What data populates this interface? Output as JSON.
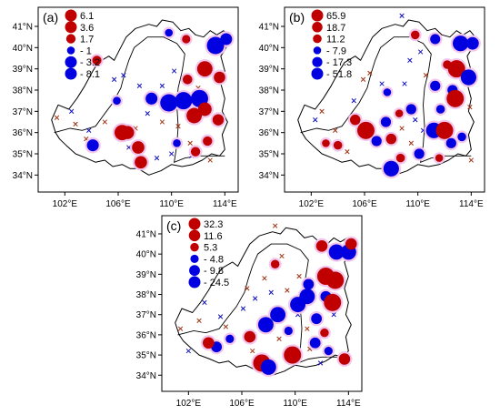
{
  "colors": {
    "positive": "#c00000",
    "negative": "#0000e0",
    "halo": "#f3c6ee",
    "cross_positive": "#a03010",
    "cross_negative": "#1010c0"
  },
  "icons": {
    "insignificant_positive": "x-cross-icon",
    "insignificant_negative": "x-cross-icon"
  },
  "axes": {
    "lon_labels": [
      "102°E",
      "106°E",
      "110°E",
      "114°E"
    ],
    "lat_labels": [
      "41°N",
      "40°N",
      "39°N",
      "38°N",
      "37°N",
      "36°N",
      "35°N",
      "34°N"
    ]
  },
  "panels": [
    {
      "label": "(a)",
      "legend": [
        "6.1",
        "3.6",
        "1.7",
        "- 1",
        "- 3.2",
        "- 8.1"
      ],
      "stations": [
        {
          "lon": 104.4,
          "lat": 39.4,
          "v": 1.6
        },
        {
          "lon": 109.8,
          "lat": 40.7,
          "v": -1
        },
        {
          "lon": 111.1,
          "lat": 40.4,
          "v": 1.2
        },
        {
          "lon": 113.3,
          "lat": 40.1,
          "v": -8.1
        },
        {
          "lon": 114.1,
          "lat": 40.4,
          "v": -3.2
        },
        {
          "lon": 112.5,
          "lat": 39.0,
          "v": 6.1
        },
        {
          "lon": 111.2,
          "lat": 38.5,
          "v": 1.8
        },
        {
          "lon": 113.6,
          "lat": 38.6,
          "v": 2.9
        },
        {
          "lon": 108.5,
          "lat": 37.6,
          "v": -3.2
        },
        {
          "lon": 109.8,
          "lat": 37.4,
          "v": -8.1
        },
        {
          "lon": 110.9,
          "lat": 37.5,
          "v": -8.1
        },
        {
          "lon": 112.1,
          "lat": 37.6,
          "v": -8.1
        },
        {
          "lon": 112.5,
          "lat": 37.1,
          "v": 4.5
        },
        {
          "lon": 111.7,
          "lat": 36.8,
          "v": 6.1
        },
        {
          "lon": 113.5,
          "lat": 36.6,
          "v": 2.8
        },
        {
          "lon": 106.3,
          "lat": 36.0,
          "v": 6.1
        },
        {
          "lon": 106.7,
          "lat": 36.0,
          "v": 4.2
        },
        {
          "lon": 104.1,
          "lat": 35.4,
          "v": -3.2
        },
        {
          "lon": 107.5,
          "lat": 35.3,
          "v": 3.6
        },
        {
          "lon": 107.7,
          "lat": 34.6,
          "v": 3.6
        },
        {
          "lon": 111.8,
          "lat": 35.1,
          "v": 1.7
        },
        {
          "lon": 112.7,
          "lat": 35.6,
          "v": 1.7
        },
        {
          "lon": 110.4,
          "lat": 35.5,
          "v": -1
        },
        {
          "lon": 105.9,
          "lat": 37.5,
          "v": -1
        }
      ],
      "crosses_positive": [
        [
          101.4,
          36.7
        ],
        [
          102.8,
          36.4
        ],
        [
          103.6,
          35.7
        ],
        [
          105.0,
          36.5
        ],
        [
          107.3,
          36.2
        ],
        [
          109.3,
          36.5
        ],
        [
          112.9,
          34.7
        ],
        [
          112.0,
          38.1
        ],
        [
          110.5,
          36.3
        ],
        [
          111.4,
          35.5
        ]
      ],
      "crosses_negative": [
        [
          102.5,
          37.0
        ],
        [
          103.8,
          36.1
        ],
        [
          105.7,
          38.5
        ],
        [
          106.4,
          38.7
        ],
        [
          107.6,
          38.2
        ],
        [
          109.3,
          38.2
        ],
        [
          110.2,
          38.9
        ],
        [
          108.2,
          36.9
        ],
        [
          106.8,
          35.3
        ],
        [
          110.0,
          35.0
        ],
        [
          111.5,
          34.9
        ],
        [
          108.9,
          34.8
        ]
      ]
    },
    {
      "label": "(b)",
      "legend": [
        "65.9",
        "18.7",
        "11.2",
        "- 7.9",
        "- 17.3",
        "- 51.8"
      ],
      "stations": [
        {
          "lon": 109.8,
          "lat": 40.6,
          "v": 11
        },
        {
          "lon": 111.3,
          "lat": 40.4,
          "v": -17
        },
        {
          "lon": 113.2,
          "lat": 40.2,
          "v": -51.8
        },
        {
          "lon": 114.1,
          "lat": 40.2,
          "v": -30
        },
        {
          "lon": 112.2,
          "lat": 39.2,
          "v": 11
        },
        {
          "lon": 112.9,
          "lat": 39.0,
          "v": 65.9
        },
        {
          "lon": 113.8,
          "lat": 38.6,
          "v": -51.8
        },
        {
          "lon": 111.3,
          "lat": 38.2,
          "v": -17.3
        },
        {
          "lon": 112.6,
          "lat": 38.0,
          "v": -17.3
        },
        {
          "lon": 107.7,
          "lat": 37.9,
          "v": -7.9
        },
        {
          "lon": 109.5,
          "lat": 37.1,
          "v": -17.3
        },
        {
          "lon": 112.8,
          "lat": 37.6,
          "v": 65.9
        },
        {
          "lon": 111.7,
          "lat": 37.1,
          "v": -11
        },
        {
          "lon": 105.3,
          "lat": 36.6,
          "v": 18.7
        },
        {
          "lon": 106.1,
          "lat": 36.1,
          "v": 65.9
        },
        {
          "lon": 106.9,
          "lat": 35.6,
          "v": -17.3
        },
        {
          "lon": 107.6,
          "lat": 36.5,
          "v": -17.3
        },
        {
          "lon": 108.0,
          "lat": 35.7,
          "v": 18.7
        },
        {
          "lon": 110.1,
          "lat": 35.0,
          "v": -17.3
        },
        {
          "lon": 111.2,
          "lat": 36.1,
          "v": -51.8
        },
        {
          "lon": 112.0,
          "lat": 36.1,
          "v": 65.9
        },
        {
          "lon": 112.5,
          "lat": 35.5,
          "v": -17.3
        },
        {
          "lon": 108.0,
          "lat": 34.3,
          "v": -51.8
        },
        {
          "lon": 108.7,
          "lat": 34.8,
          "v": 11
        },
        {
          "lon": 104.0,
          "lat": 35.4,
          "v": 11
        },
        {
          "lon": 103.1,
          "lat": 35.5,
          "v": 7.9
        },
        {
          "lon": 111.6,
          "lat": 34.8,
          "v": 7.9
        },
        {
          "lon": 113.3,
          "lat": 35.8,
          "v": -11
        },
        {
          "lon": 108.6,
          "lat": 36.9,
          "v": 7.9
        }
      ],
      "crosses_positive": [
        [
          102.8,
          37.0
        ],
        [
          103.8,
          36.1
        ],
        [
          105.9,
          38.5
        ],
        [
          106.4,
          38.8
        ],
        [
          108.8,
          36.2
        ],
        [
          110.6,
          38.7
        ],
        [
          113.9,
          37.2
        ],
        [
          114.0,
          34.7
        ],
        [
          104.7,
          35.1
        ],
        [
          109.5,
          35.5
        ]
      ],
      "crosses_negative": [
        [
          108.8,
          41.5
        ],
        [
          102.3,
          36.6
        ],
        [
          105.2,
          37.5
        ],
        [
          107.3,
          38.3
        ],
        [
          109.0,
          38.3
        ],
        [
          109.4,
          39.4
        ],
        [
          110.2,
          39.8
        ],
        [
          109.8,
          36.6
        ],
        [
          110.4,
          36.1
        ]
      ]
    },
    {
      "label": "(c)",
      "legend": [
        "32.3",
        "11.6",
        "5.3",
        "- 4.8",
        "- 9.8",
        "- 24.5"
      ],
      "stations": [
        {
          "lon": 112.0,
          "lat": 40.4,
          "v": 11.6
        },
        {
          "lon": 113.1,
          "lat": 40.1,
          "v": -24.5
        },
        {
          "lon": 114.0,
          "lat": 40.1,
          "v": -24.5
        },
        {
          "lon": 114.2,
          "lat": 40.5,
          "v": 11.6
        },
        {
          "lon": 112.3,
          "lat": 38.9,
          "v": 32.3
        },
        {
          "lon": 113.0,
          "lat": 38.7,
          "v": 32.3
        },
        {
          "lon": 111.0,
          "lat": 38.5,
          "v": -9.8
        },
        {
          "lon": 110.9,
          "lat": 37.9,
          "v": -24.5
        },
        {
          "lon": 112.3,
          "lat": 37.9,
          "v": -9.8
        },
        {
          "lon": 112.8,
          "lat": 37.6,
          "v": 32.3
        },
        {
          "lon": 110.2,
          "lat": 37.5,
          "v": -24.5
        },
        {
          "lon": 108.7,
          "lat": 37.0,
          "v": -24.5
        },
        {
          "lon": 107.8,
          "lat": 36.5,
          "v": -24.5
        },
        {
          "lon": 106.6,
          "lat": 35.9,
          "v": 11.6
        },
        {
          "lon": 104.1,
          "lat": 35.4,
          "v": -9.8
        },
        {
          "lon": 103.5,
          "lat": 35.6,
          "v": 11.6
        },
        {
          "lon": 105.1,
          "lat": 35.8,
          "v": -4.8
        },
        {
          "lon": 107.5,
          "lat": 34.6,
          "v": 32.3
        },
        {
          "lon": 108.0,
          "lat": 34.4,
          "v": -24.5
        },
        {
          "lon": 109.8,
          "lat": 35.0,
          "v": 32.3
        },
        {
          "lon": 111.5,
          "lat": 35.6,
          "v": -9.8
        },
        {
          "lon": 112.2,
          "lat": 36.1,
          "v": 5.3
        },
        {
          "lon": 112.5,
          "lat": 35.2,
          "v": -4.8
        },
        {
          "lon": 113.7,
          "lat": 34.8,
          "v": 11.6
        },
        {
          "lon": 111.6,
          "lat": 36.8,
          "v": -9.8
        },
        {
          "lon": 109.5,
          "lat": 36.2,
          "v": -4.8
        },
        {
          "lon": 108.5,
          "lat": 39.5,
          "v": 5.3
        }
      ],
      "crosses_positive": [
        [
          108.5,
          41.4
        ],
        [
          101.4,
          36.3
        ],
        [
          102.8,
          36.7
        ],
        [
          104.8,
          36.4
        ],
        [
          106.4,
          38.3
        ],
        [
          107.7,
          38.8
        ],
        [
          109.0,
          39.9
        ],
        [
          110.3,
          38.9
        ],
        [
          109.4,
          38.2
        ],
        [
          106.8,
          35.2
        ],
        [
          108.8,
          35.8
        ],
        [
          110.9,
          36.3
        ],
        [
          111.1,
          35.3
        ]
      ],
      "crosses_negative": [
        [
          103.2,
          37.6
        ],
        [
          102.0,
          35.2
        ],
        [
          104.4,
          36.9
        ],
        [
          106.1,
          37.3
        ],
        [
          107.0,
          37.8
        ],
        [
          108.2,
          38.1
        ],
        [
          110.2,
          37.0
        ],
        [
          112.9,
          37.0
        ],
        [
          111.9,
          34.6
        ]
      ]
    }
  ]
}
